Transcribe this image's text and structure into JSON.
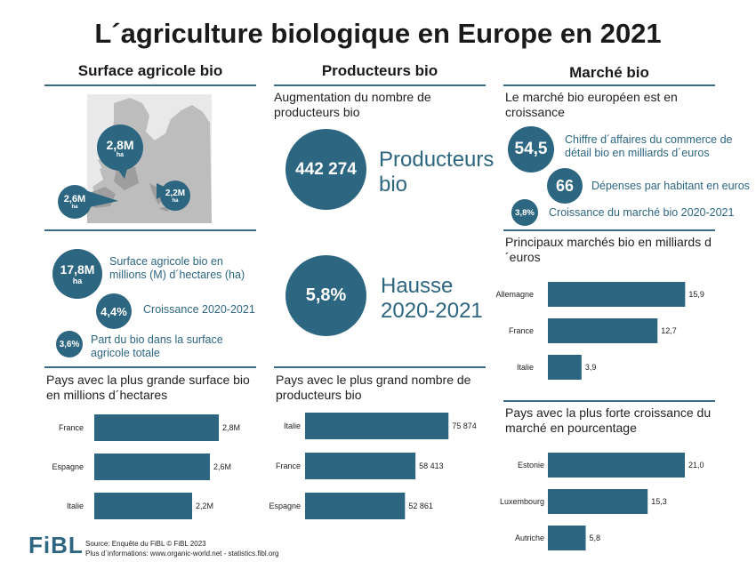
{
  "title": "L´agriculture biologique en Europe en 2021",
  "columns": {
    "surface": "Surface agricole bio",
    "producers": "Producteurs bio",
    "market": "Marché bio"
  },
  "map": {
    "bubbles": [
      {
        "value": "2,8M",
        "unit": "ha"
      },
      {
        "value": "2,6M",
        "unit": "ha"
      },
      {
        "value": "2,2M",
        "unit": "ha"
      }
    ]
  },
  "surface_stats": {
    "area": {
      "value": "17,8M",
      "unit": "ha",
      "label": "Surface agricole bio en millions (M) d´hectares (ha)"
    },
    "growth": {
      "value": "4,4%",
      "label": "Croissance 2020-2021"
    },
    "share": {
      "value": "3,6%",
      "label": "Part du bio dans la surface agricole totale"
    }
  },
  "producer_stats": {
    "heading": "Augmentation du nombre de producteurs bio",
    "count": {
      "value": "442 274",
      "label": "Producteurs bio"
    },
    "rise": {
      "value": "5,8%",
      "label": "Hausse 2020-2021"
    }
  },
  "market_stats": {
    "heading": "Le marché bio européen est en croissance",
    "turnover": {
      "value": "54,5",
      "label": "Chiffre d´affaires du commerce de détail bio en milliards d´euros"
    },
    "per_capita": {
      "value": "66",
      "label": "Dépenses par habitant en euros"
    },
    "growth": {
      "value": "3,8%",
      "label": "Croissance du marché bio 2020-2021"
    }
  },
  "chart_data": [
    {
      "type": "bar",
      "title": "Pays avec la plus grande surface bio en millions d´hectares",
      "orientation": "horizontal",
      "categories": [
        "France",
        "Espagne",
        "Italie"
      ],
      "values": [
        2.8,
        2.6,
        2.2
      ],
      "value_labels": [
        "2,8M",
        "2,6M",
        "2,2M"
      ],
      "xlim": [
        0,
        3.0
      ],
      "color": "#2d6680"
    },
    {
      "type": "bar",
      "title": "Pays avec le plus grand nombre de producteurs bio",
      "orientation": "horizontal",
      "categories": [
        "Italie",
        "France",
        "Espagne"
      ],
      "values": [
        75874,
        58413,
        52861
      ],
      "value_labels": [
        "75 874",
        "58 413",
        "52 861"
      ],
      "xlim": [
        0,
        80000
      ],
      "color": "#2d6680"
    },
    {
      "type": "bar",
      "title": "Principaux marchés bio en milliards d´euros",
      "orientation": "horizontal",
      "categories": [
        "Allemagne",
        "France",
        "Italie"
      ],
      "values": [
        15.9,
        12.7,
        3.9
      ],
      "value_labels": [
        "15,9",
        "12,7",
        "3,9"
      ],
      "xlim": [
        0,
        17
      ],
      "color": "#2d6680"
    },
    {
      "type": "bar",
      "title": "Pays avec la plus forte croissance du marché en pourcentage",
      "orientation": "horizontal",
      "categories": [
        "Estonie",
        "Luxembourg",
        "Autriche"
      ],
      "values": [
        21.0,
        15.3,
        5.8
      ],
      "value_labels": [
        "21,0",
        "15,3",
        "5,8"
      ],
      "xlim": [
        0,
        22.5
      ],
      "color": "#2d6680"
    }
  ],
  "footer": {
    "logo": "FiBL",
    "source": "Source: Enquête du FiBL © FiBL 2023",
    "info": "Plus d´informations: www.organic-world.net - statistics.fibl.org"
  }
}
